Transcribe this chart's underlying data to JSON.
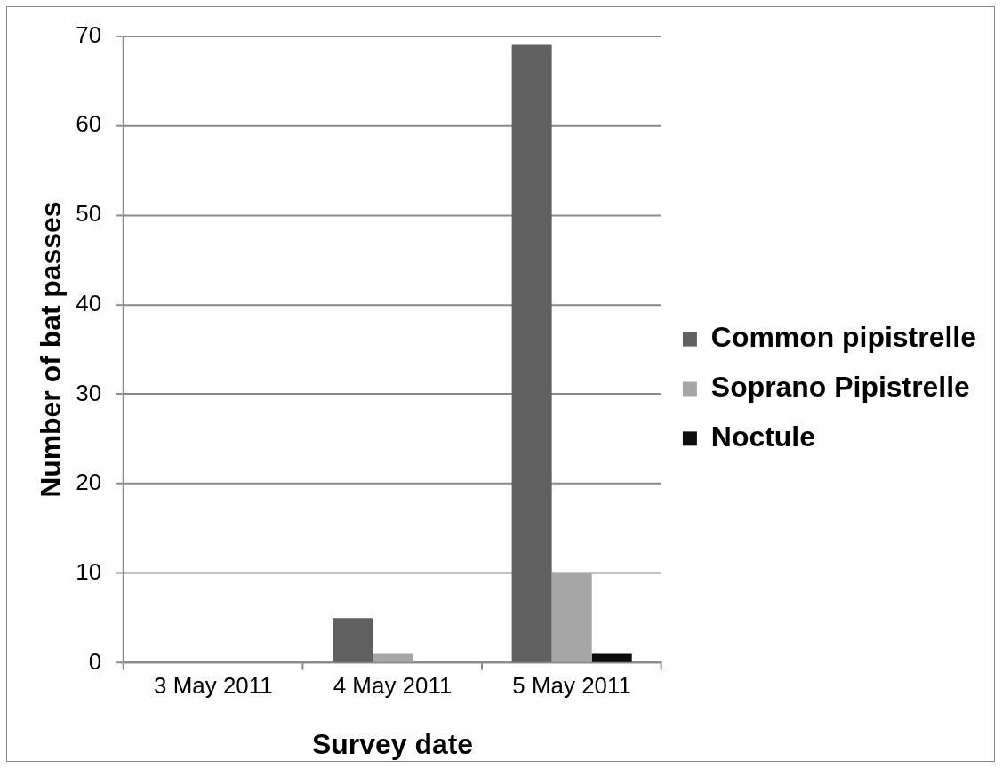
{
  "chart_data": {
    "type": "bar",
    "xlabel": "Survey date",
    "ylabel": "Number of bat passes",
    "categories": [
      "3 May 2011",
      "4 May 2011",
      "5 May 2011"
    ],
    "series": [
      {
        "name": "Common pipistrelle",
        "color": "#606060",
        "values": [
          0,
          5,
          69
        ]
      },
      {
        "name": "Soprano Pipistrelle",
        "color": "#a6a6a6",
        "values": [
          0,
          1,
          10
        ]
      },
      {
        "name": "Noctule",
        "color": "#0d0d0d",
        "values": [
          0,
          0,
          1
        ]
      }
    ],
    "ylim": [
      0,
      70
    ],
    "yticks": [
      0,
      10,
      20,
      30,
      40,
      50,
      60,
      70
    ],
    "grid": "y",
    "legend": "right"
  }
}
